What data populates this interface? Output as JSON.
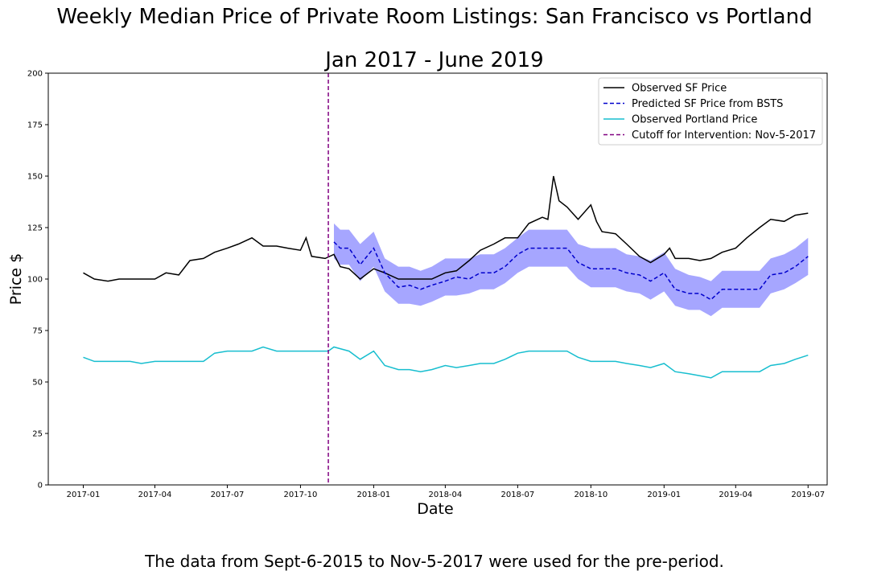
{
  "title_line1": "Weekly Median Price of Private Room Listings: San Francisco vs Portland",
  "title_line2": "Jan 2017 - June 2019",
  "caption": "The data from Sept-6-2015 to Nov-5-2017 were used for the pre-period.",
  "chart_data": {
    "type": "line",
    "xlabel": "Date",
    "ylabel": "Price $",
    "xlim": [
      "2016-11-18",
      "2019-07-25"
    ],
    "ylim": [
      0,
      200
    ],
    "yticks": [
      0,
      25,
      50,
      75,
      100,
      125,
      150,
      175,
      200
    ],
    "xticks": [
      "2017-01",
      "2017-04",
      "2017-07",
      "2017-10",
      "2018-01",
      "2018-04",
      "2018-07",
      "2018-10",
      "2019-01",
      "2019-04",
      "2019-07"
    ],
    "legend_position": "top-right",
    "intervention": {
      "date": "2017-11-05",
      "label": "Cutoff for Intervention: Nov-5-2017",
      "color": "#800080"
    },
    "series": [
      {
        "name": "Observed SF Price",
        "color": "#000000",
        "style": "solid",
        "points": [
          [
            "2017-01-01",
            103
          ],
          [
            "2017-01-15",
            100
          ],
          [
            "2017-02-01",
            99
          ],
          [
            "2017-02-15",
            100
          ],
          [
            "2017-03-01",
            100
          ],
          [
            "2017-03-15",
            100
          ],
          [
            "2017-04-01",
            100
          ],
          [
            "2017-04-15",
            103
          ],
          [
            "2017-05-01",
            102
          ],
          [
            "2017-05-15",
            109
          ],
          [
            "2017-06-01",
            110
          ],
          [
            "2017-06-15",
            113
          ],
          [
            "2017-07-01",
            115
          ],
          [
            "2017-07-15",
            117
          ],
          [
            "2017-08-01",
            120
          ],
          [
            "2017-08-15",
            116
          ],
          [
            "2017-09-01",
            116
          ],
          [
            "2017-09-15",
            115
          ],
          [
            "2017-10-01",
            114
          ],
          [
            "2017-10-08",
            120
          ],
          [
            "2017-10-15",
            111
          ],
          [
            "2017-11-01",
            110
          ],
          [
            "2017-11-12",
            112
          ],
          [
            "2017-11-20",
            106
          ],
          [
            "2017-12-01",
            105
          ],
          [
            "2017-12-15",
            100
          ],
          [
            "2018-01-01",
            105
          ],
          [
            "2018-01-15",
            103
          ],
          [
            "2018-02-01",
            100
          ],
          [
            "2018-02-15",
            100
          ],
          [
            "2018-03-01",
            100
          ],
          [
            "2018-03-15",
            100
          ],
          [
            "2018-04-01",
            103
          ],
          [
            "2018-04-15",
            104
          ],
          [
            "2018-05-01",
            109
          ],
          [
            "2018-05-15",
            114
          ],
          [
            "2018-06-01",
            117
          ],
          [
            "2018-06-15",
            120
          ],
          [
            "2018-07-01",
            120
          ],
          [
            "2018-07-15",
            127
          ],
          [
            "2018-08-01",
            130
          ],
          [
            "2018-08-08",
            129
          ],
          [
            "2018-08-15",
            150
          ],
          [
            "2018-08-22",
            138
          ],
          [
            "2018-09-01",
            135
          ],
          [
            "2018-09-15",
            129
          ],
          [
            "2018-10-01",
            136
          ],
          [
            "2018-10-08",
            128
          ],
          [
            "2018-10-15",
            123
          ],
          [
            "2018-11-01",
            122
          ],
          [
            "2018-11-15",
            117
          ],
          [
            "2018-12-01",
            111
          ],
          [
            "2018-12-15",
            108
          ],
          [
            "2019-01-01",
            112
          ],
          [
            "2019-01-08",
            115
          ],
          [
            "2019-01-15",
            110
          ],
          [
            "2019-02-01",
            110
          ],
          [
            "2019-02-15",
            109
          ],
          [
            "2019-03-01",
            110
          ],
          [
            "2019-03-15",
            113
          ],
          [
            "2019-04-01",
            115
          ],
          [
            "2019-04-15",
            120
          ],
          [
            "2019-05-01",
            125
          ],
          [
            "2019-05-15",
            129
          ],
          [
            "2019-06-01",
            128
          ],
          [
            "2019-06-15",
            131
          ],
          [
            "2019-07-01",
            132
          ]
        ]
      },
      {
        "name": "Predicted SF Price from BSTS",
        "color": "#0000cc",
        "style": "dashed",
        "points": [
          [
            "2017-11-12",
            118
          ],
          [
            "2017-11-20",
            115
          ],
          [
            "2017-12-01",
            115
          ],
          [
            "2017-12-15",
            107
          ],
          [
            "2018-01-01",
            115
          ],
          [
            "2018-01-15",
            103
          ],
          [
            "2018-02-01",
            96
          ],
          [
            "2018-02-15",
            97
          ],
          [
            "2018-03-01",
            95
          ],
          [
            "2018-03-15",
            97
          ],
          [
            "2018-04-01",
            99
          ],
          [
            "2018-04-15",
            101
          ],
          [
            "2018-05-01",
            100
          ],
          [
            "2018-05-15",
            103
          ],
          [
            "2018-06-01",
            103
          ],
          [
            "2018-06-15",
            106
          ],
          [
            "2018-07-01",
            112
          ],
          [
            "2018-07-15",
            115
          ],
          [
            "2018-08-01",
            115
          ],
          [
            "2018-08-15",
            115
          ],
          [
            "2018-09-01",
            115
          ],
          [
            "2018-09-15",
            108
          ],
          [
            "2018-10-01",
            105
          ],
          [
            "2018-10-15",
            105
          ],
          [
            "2018-11-01",
            105
          ],
          [
            "2018-11-15",
            103
          ],
          [
            "2018-12-01",
            102
          ],
          [
            "2018-12-15",
            99
          ],
          [
            "2019-01-01",
            103
          ],
          [
            "2019-01-15",
            95
          ],
          [
            "2019-02-01",
            93
          ],
          [
            "2019-02-15",
            93
          ],
          [
            "2019-03-01",
            90
          ],
          [
            "2019-03-15",
            95
          ],
          [
            "2019-04-01",
            95
          ],
          [
            "2019-04-15",
            95
          ],
          [
            "2019-05-01",
            95
          ],
          [
            "2019-05-15",
            102
          ],
          [
            "2019-06-01",
            103
          ],
          [
            "2019-06-15",
            106
          ],
          [
            "2019-07-01",
            111
          ]
        ]
      },
      {
        "name": "Observed Portland Price",
        "color": "#17becf",
        "style": "solid",
        "points": [
          [
            "2017-01-01",
            62
          ],
          [
            "2017-01-15",
            60
          ],
          [
            "2017-02-01",
            60
          ],
          [
            "2017-02-15",
            60
          ],
          [
            "2017-03-01",
            60
          ],
          [
            "2017-03-15",
            59
          ],
          [
            "2017-04-01",
            60
          ],
          [
            "2017-04-15",
            60
          ],
          [
            "2017-05-01",
            60
          ],
          [
            "2017-05-15",
            60
          ],
          [
            "2017-06-01",
            60
          ],
          [
            "2017-06-15",
            64
          ],
          [
            "2017-07-01",
            65
          ],
          [
            "2017-07-15",
            65
          ],
          [
            "2017-08-01",
            65
          ],
          [
            "2017-08-15",
            67
          ],
          [
            "2017-09-01",
            65
          ],
          [
            "2017-09-15",
            65
          ],
          [
            "2017-10-01",
            65
          ],
          [
            "2017-10-15",
            65
          ],
          [
            "2017-11-05",
            65
          ],
          [
            "2017-11-12",
            67
          ],
          [
            "2017-12-01",
            65
          ],
          [
            "2017-12-15",
            61
          ],
          [
            "2018-01-01",
            65
          ],
          [
            "2018-01-15",
            58
          ],
          [
            "2018-02-01",
            56
          ],
          [
            "2018-02-15",
            56
          ],
          [
            "2018-03-01",
            55
          ],
          [
            "2018-03-15",
            56
          ],
          [
            "2018-04-01",
            58
          ],
          [
            "2018-04-15",
            57
          ],
          [
            "2018-05-01",
            58
          ],
          [
            "2018-05-15",
            59
          ],
          [
            "2018-06-01",
            59
          ],
          [
            "2018-06-15",
            61
          ],
          [
            "2018-07-01",
            64
          ],
          [
            "2018-07-15",
            65
          ],
          [
            "2018-08-01",
            65
          ],
          [
            "2018-08-15",
            65
          ],
          [
            "2018-09-01",
            65
          ],
          [
            "2018-09-15",
            62
          ],
          [
            "2018-10-01",
            60
          ],
          [
            "2018-10-15",
            60
          ],
          [
            "2018-11-01",
            60
          ],
          [
            "2018-11-15",
            59
          ],
          [
            "2018-12-01",
            58
          ],
          [
            "2018-12-15",
            57
          ],
          [
            "2019-01-01",
            59
          ],
          [
            "2019-01-15",
            55
          ],
          [
            "2019-02-01",
            54
          ],
          [
            "2019-02-15",
            53
          ],
          [
            "2019-03-01",
            52
          ],
          [
            "2019-03-15",
            55
          ],
          [
            "2019-04-01",
            55
          ],
          [
            "2019-04-15",
            55
          ],
          [
            "2019-05-01",
            55
          ],
          [
            "2019-05-15",
            58
          ],
          [
            "2019-06-01",
            59
          ],
          [
            "2019-06-15",
            61
          ],
          [
            "2019-07-01",
            63
          ]
        ]
      }
    ],
    "prediction_interval": {
      "color": "#a6a6ff",
      "upper": [
        [
          "2017-11-12",
          127
        ],
        [
          "2017-11-20",
          124
        ],
        [
          "2017-12-01",
          124
        ],
        [
          "2017-12-15",
          117
        ],
        [
          "2018-01-01",
          123
        ],
        [
          "2018-01-15",
          110
        ],
        [
          "2018-02-01",
          106
        ],
        [
          "2018-02-15",
          106
        ],
        [
          "2018-03-01",
          104
        ],
        [
          "2018-03-15",
          106
        ],
        [
          "2018-04-01",
          110
        ],
        [
          "2018-04-15",
          110
        ],
        [
          "2018-05-01",
          110
        ],
        [
          "2018-05-15",
          112
        ],
        [
          "2018-06-01",
          112
        ],
        [
          "2018-06-15",
          115
        ],
        [
          "2018-07-01",
          120
        ],
        [
          "2018-07-15",
          124
        ],
        [
          "2018-08-01",
          124
        ],
        [
          "2018-08-15",
          124
        ],
        [
          "2018-09-01",
          124
        ],
        [
          "2018-09-15",
          117
        ],
        [
          "2018-10-01",
          115
        ],
        [
          "2018-10-15",
          115
        ],
        [
          "2018-11-01",
          115
        ],
        [
          "2018-11-15",
          112
        ],
        [
          "2018-12-01",
          111
        ],
        [
          "2018-12-15",
          109
        ],
        [
          "2019-01-01",
          113
        ],
        [
          "2019-01-15",
          105
        ],
        [
          "2019-02-01",
          102
        ],
        [
          "2019-02-15",
          101
        ],
        [
          "2019-03-01",
          99
        ],
        [
          "2019-03-15",
          104
        ],
        [
          "2019-04-01",
          104
        ],
        [
          "2019-04-15",
          104
        ],
        [
          "2019-05-01",
          104
        ],
        [
          "2019-05-15",
          110
        ],
        [
          "2019-06-01",
          112
        ],
        [
          "2019-06-15",
          115
        ],
        [
          "2019-07-01",
          120
        ]
      ],
      "lower": [
        [
          "2017-11-12",
          110
        ],
        [
          "2017-11-20",
          107
        ],
        [
          "2017-12-01",
          107
        ],
        [
          "2017-12-15",
          99
        ],
        [
          "2018-01-01",
          106
        ],
        [
          "2018-01-15",
          94
        ],
        [
          "2018-02-01",
          88
        ],
        [
          "2018-02-15",
          88
        ],
        [
          "2018-03-01",
          87
        ],
        [
          "2018-03-15",
          89
        ],
        [
          "2018-04-01",
          92
        ],
        [
          "2018-04-15",
          92
        ],
        [
          "2018-05-01",
          93
        ],
        [
          "2018-05-15",
          95
        ],
        [
          "2018-06-01",
          95
        ],
        [
          "2018-06-15",
          98
        ],
        [
          "2018-07-01",
          103
        ],
        [
          "2018-07-15",
          106
        ],
        [
          "2018-08-01",
          106
        ],
        [
          "2018-08-15",
          106
        ],
        [
          "2018-09-01",
          106
        ],
        [
          "2018-09-15",
          100
        ],
        [
          "2018-10-01",
          96
        ],
        [
          "2018-10-15",
          96
        ],
        [
          "2018-11-01",
          96
        ],
        [
          "2018-11-15",
          94
        ],
        [
          "2018-12-01",
          93
        ],
        [
          "2018-12-15",
          90
        ],
        [
          "2019-01-01",
          94
        ],
        [
          "2019-01-15",
          87
        ],
        [
          "2019-02-01",
          85
        ],
        [
          "2019-02-15",
          85
        ],
        [
          "2019-03-01",
          82
        ],
        [
          "2019-03-15",
          86
        ],
        [
          "2019-04-01",
          86
        ],
        [
          "2019-04-15",
          86
        ],
        [
          "2019-05-01",
          86
        ],
        [
          "2019-05-15",
          93
        ],
        [
          "2019-06-01",
          95
        ],
        [
          "2019-06-15",
          98
        ],
        [
          "2019-07-01",
          102
        ]
      ]
    }
  }
}
